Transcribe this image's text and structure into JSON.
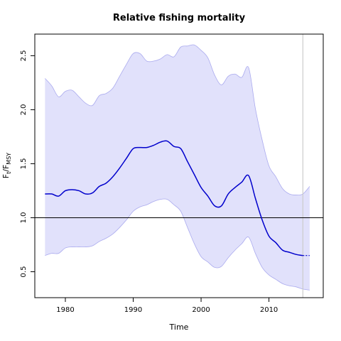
{
  "chart_data": {
    "type": "line",
    "title": "Relative fishing mortality",
    "xlabel": "Time",
    "ylabel": {
      "base": "F",
      "sub1": "t",
      "sep": "/F",
      "sub2": "MSY"
    },
    "xlim": [
      1975.5,
      2018
    ],
    "ylim": [
      0.26,
      2.7
    ],
    "x_ticks": [
      1980,
      1990,
      2000,
      2010
    ],
    "y_ticks": [
      0.5,
      1.0,
      1.5,
      2.0,
      2.5
    ],
    "x_tick_labels": [
      "1980",
      "1990",
      "2000",
      "2010"
    ],
    "y_tick_labels": [
      "0.5",
      "1.0",
      "1.5",
      "2.0",
      "2.5"
    ],
    "reference_line": 1.0,
    "last_year_marker": 2015,
    "colors": {
      "line": "#0000cc",
      "band_fill": "#e1e1fb",
      "band_edge": "#aaaaee",
      "reference": "#000000",
      "marker": "#cccccc"
    },
    "series": [
      {
        "role": "estimate",
        "x": [
          1977,
          1978,
          1979,
          1980,
          1981,
          1982,
          1983,
          1984,
          1985,
          1986,
          1987,
          1988,
          1989,
          1990,
          1991,
          1992,
          1993,
          1994,
          1995,
          1996,
          1997,
          1998,
          1999,
          2000,
          2001,
          2002,
          2003,
          2004,
          2005,
          2006,
          2007,
          2008,
          2009,
          2010,
          2011,
          2012,
          2013,
          2014,
          2015
        ],
        "y": [
          1.22,
          1.22,
          1.2,
          1.25,
          1.26,
          1.25,
          1.22,
          1.23,
          1.29,
          1.32,
          1.38,
          1.46,
          1.55,
          1.64,
          1.65,
          1.65,
          1.67,
          1.7,
          1.71,
          1.66,
          1.64,
          1.52,
          1.4,
          1.28,
          1.2,
          1.11,
          1.11,
          1.22,
          1.28,
          1.33,
          1.39,
          1.18,
          0.98,
          0.83,
          0.77,
          0.7,
          0.68,
          0.66,
          0.65
        ]
      },
      {
        "role": "projection",
        "x": [
          2015,
          2016
        ],
        "y": [
          0.65,
          0.65
        ]
      },
      {
        "role": "upper",
        "x": [
          1977,
          1978,
          1979,
          1980,
          1981,
          1982,
          1983,
          1984,
          1985,
          1986,
          1987,
          1988,
          1989,
          1990,
          1991,
          1992,
          1993,
          1994,
          1995,
          1996,
          1997,
          1998,
          1999,
          2000,
          2001,
          2002,
          2003,
          2004,
          2005,
          2006,
          2007,
          2008,
          2009,
          2010,
          2011,
          2012,
          2013,
          2014,
          2015,
          2016
        ],
        "y": [
          2.29,
          2.22,
          2.12,
          2.17,
          2.18,
          2.12,
          2.06,
          2.04,
          2.13,
          2.15,
          2.2,
          2.31,
          2.42,
          2.52,
          2.52,
          2.45,
          2.45,
          2.47,
          2.51,
          2.49,
          2.58,
          2.59,
          2.6,
          2.55,
          2.48,
          2.32,
          2.23,
          2.31,
          2.33,
          2.3,
          2.39,
          2.01,
          1.72,
          1.48,
          1.38,
          1.27,
          1.22,
          1.21,
          1.22,
          1.29
        ]
      },
      {
        "role": "lower",
        "x": [
          1977,
          1978,
          1979,
          1980,
          1981,
          1982,
          1983,
          1984,
          1985,
          1986,
          1987,
          1988,
          1989,
          1990,
          1991,
          1992,
          1993,
          1994,
          1995,
          1996,
          1997,
          1998,
          1999,
          2000,
          2001,
          2002,
          2003,
          2004,
          2005,
          2006,
          2007,
          2008,
          2009,
          2010,
          2011,
          2012,
          2013,
          2014,
          2015,
          2016
        ],
        "y": [
          0.65,
          0.67,
          0.67,
          0.72,
          0.73,
          0.73,
          0.73,
          0.74,
          0.78,
          0.81,
          0.85,
          0.91,
          0.98,
          1.06,
          1.1,
          1.12,
          1.15,
          1.17,
          1.17,
          1.12,
          1.06,
          0.91,
          0.76,
          0.64,
          0.59,
          0.54,
          0.55,
          0.63,
          0.7,
          0.76,
          0.82,
          0.67,
          0.54,
          0.47,
          0.43,
          0.39,
          0.37,
          0.36,
          0.34,
          0.33
        ]
      }
    ]
  }
}
